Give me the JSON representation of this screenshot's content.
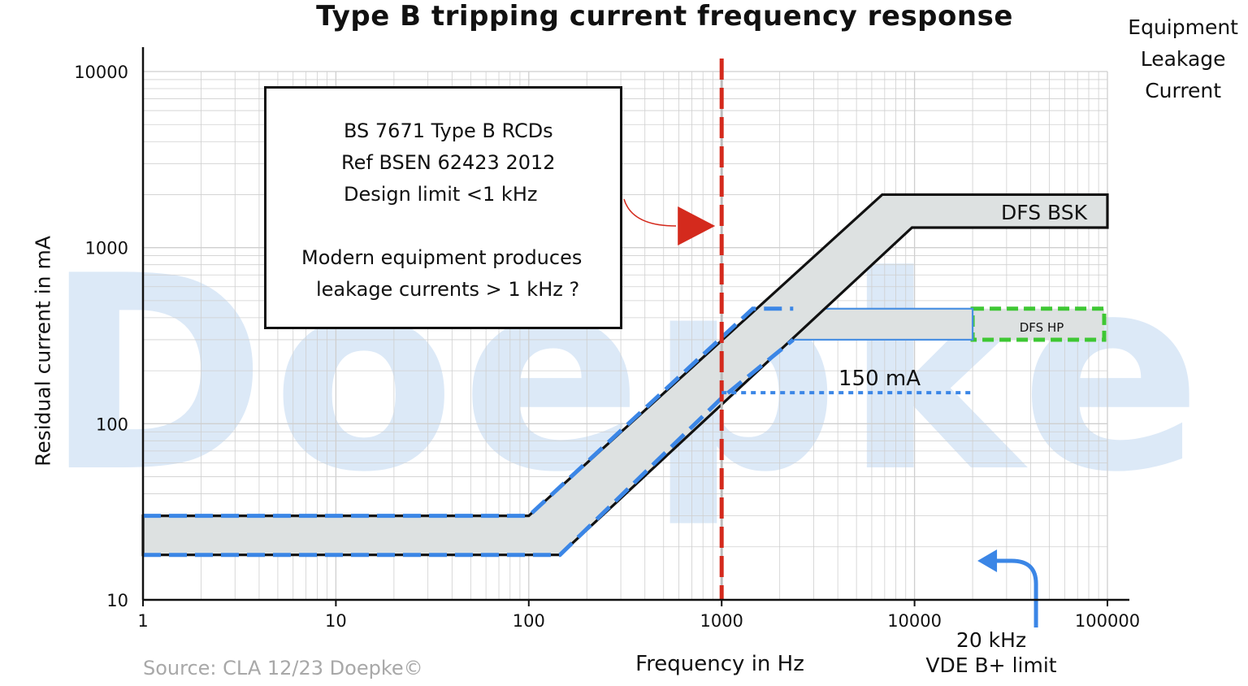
{
  "title": "Type B tripping current frequency response",
  "side_label": [
    "Equipment",
    "Leakage",
    "Current"
  ],
  "source": "Source: CLA 12/23 Doepke©",
  "watermark": "Doepke",
  "note_box": {
    "lines": [
      "BS 7671 Type B RCDs",
      "Ref BSEN 62423 2012",
      "Design limit <1 kHz",
      "Modern equipment produces",
      "leakage currents > 1 kHz ?"
    ]
  },
  "limit_label": [
    "20 kHz",
    "VDE B+ limit"
  ],
  "colors": {
    "band_fill": "#dde1e1",
    "band_edge": "#111111",
    "dashed_blue": "#3b86e6",
    "dashed_red": "#d42a1d",
    "dashed_green": "#3ec733",
    "hp_edge": "#4a90e2",
    "watermark": "#dce9f7",
    "grid": "#cfcfcf"
  },
  "chart_data": {
    "type": "line",
    "title": "Type B tripping current frequency response",
    "xlabel": "Frequency in Hz",
    "ylabel": "Residual current in mA",
    "x_scale": "log",
    "y_scale": "log",
    "xlim": [
      1,
      100000
    ],
    "ylim": [
      10,
      10000
    ],
    "x_ticks": [
      1,
      10,
      100,
      1000,
      10000,
      100000
    ],
    "x_tick_labels": [
      "1",
      "10",
      "100",
      "1000",
      "10000",
      "100000"
    ],
    "y_ticks": [
      10,
      100,
      1000,
      10000
    ],
    "y_tick_labels": [
      "10",
      "100",
      "1000",
      "10000"
    ],
    "grid": true,
    "bands": [
      {
        "name": "DFS BSK",
        "upper": {
          "x": [
            1,
            100,
            6800,
            100000
          ],
          "y": [
            30,
            30,
            2000,
            2000
          ]
        },
        "lower": {
          "x": [
            1,
            145,
            9700,
            100000
          ],
          "y": [
            18,
            18,
            1300,
            1300
          ]
        }
      },
      {
        "name": "DFS HP",
        "upper": {
          "x": [
            1450,
            20000
          ],
          "y": [
            450,
            450
          ]
        },
        "lower": {
          "x": [
            2350,
            20000
          ],
          "y": [
            300,
            300
          ]
        },
        "extension_dashed": {
          "x": [
            20000,
            100000
          ],
          "y_upper": 450,
          "y_lower": 300
        }
      }
    ],
    "dashed_envelope": {
      "upper": {
        "x": [
          1,
          100,
          1450,
          2350
        ],
        "y": [
          30,
          30,
          450,
          450
        ]
      },
      "lower": {
        "x": [
          1,
          145,
          1000,
          2350
        ],
        "y": [
          18,
          18,
          140,
          300
        ]
      }
    },
    "reference_lines": [
      {
        "name": "Design limit",
        "orientation": "vertical",
        "x": 1000
      },
      {
        "name": "150 mA",
        "orientation": "horizontal",
        "y": 150,
        "x_range": [
          1000,
          20000
        ]
      },
      {
        "name": "20 kHz",
        "orientation": "vertical-arrow",
        "x": 20000
      }
    ],
    "annotations": [
      {
        "text": "150 mA",
        "x": 3000,
        "y": 180
      },
      {
        "text": "DFS BSK",
        "x": 40000,
        "y": 1650
      },
      {
        "text": "DFS HP",
        "x": 40000,
        "y": 390
      }
    ]
  }
}
